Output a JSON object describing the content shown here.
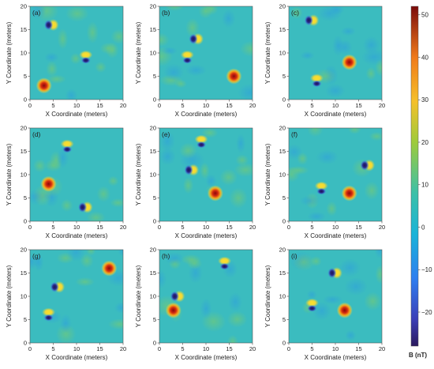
{
  "chart_data": {
    "type": "heatmap",
    "panels": [
      {
        "label": "(a)",
        "xlabel": "X Coordinate (meters)",
        "ylabel": "Y Coordinate (meters)",
        "xlim": [
          0,
          20
        ],
        "ylim": [
          0,
          20
        ],
        "xticks": [
          "0",
          "5",
          "10",
          "15",
          "20"
        ],
        "yticks": [
          "0",
          "5",
          "10",
          "15",
          "20"
        ],
        "anomalies": [
          {
            "x": 4.5,
            "y": 16.0,
            "type": "dipole",
            "strength": 28
          },
          {
            "x": 12.0,
            "y": 9.0,
            "type": "dipole",
            "strength": 26
          },
          {
            "x": 3.0,
            "y": 3.0,
            "type": "monopole",
            "strength": 50
          }
        ]
      },
      {
        "label": "(b)",
        "xlabel": "X Coordinate (meters)",
        "ylabel": "Y Coordinate (meters)",
        "xlim": [
          0,
          20
        ],
        "ylim": [
          0,
          20
        ],
        "xticks": [
          "0",
          "5",
          "10",
          "15",
          "20"
        ],
        "yticks": [
          "0",
          "5",
          "10",
          "15",
          "20"
        ],
        "anomalies": [
          {
            "x": 7.8,
            "y": 13.0,
            "type": "dipole",
            "strength": 28
          },
          {
            "x": 6.0,
            "y": 9.0,
            "type": "dipole",
            "strength": 26
          },
          {
            "x": 16.0,
            "y": 5.0,
            "type": "monopole",
            "strength": 50
          }
        ]
      },
      {
        "label": "(c)",
        "xlabel": "X Coordinate (meters)",
        "ylabel": "Y Coordinate (meters)",
        "xlim": [
          0,
          20
        ],
        "ylim": [
          0,
          20
        ],
        "xticks": [
          "0",
          "5",
          "10",
          "15",
          "20"
        ],
        "yticks": [
          "0",
          "5",
          "10",
          "15",
          "20"
        ],
        "anomalies": [
          {
            "x": 4.8,
            "y": 17.0,
            "type": "dipole",
            "strength": 28
          },
          {
            "x": 6.0,
            "y": 4.0,
            "type": "dipole",
            "strength": 26
          },
          {
            "x": 13.0,
            "y": 8.0,
            "type": "monopole",
            "strength": 48
          }
        ]
      },
      {
        "label": "(d)",
        "xlabel": "X Coordinate (meters)",
        "ylabel": "Y Coordinate (meters)",
        "xlim": [
          0,
          20
        ],
        "ylim": [
          0,
          20
        ],
        "xticks": [
          "0",
          "5",
          "10",
          "15",
          "20"
        ],
        "yticks": [
          "0",
          "5",
          "10",
          "15",
          "20"
        ],
        "anomalies": [
          {
            "x": 8.0,
            "y": 16.0,
            "type": "dipole",
            "strength": 26
          },
          {
            "x": 11.8,
            "y": 3.0,
            "type": "dipole",
            "strength": 26
          },
          {
            "x": 4.0,
            "y": 8.0,
            "type": "monopole",
            "strength": 46
          }
        ]
      },
      {
        "label": "(e)",
        "xlabel": "X Coordinate (meters)",
        "ylabel": "Y Coordinate (meters)",
        "xlim": [
          0,
          20
        ],
        "ylim": [
          0,
          20
        ],
        "xticks": [
          "0",
          "5",
          "10",
          "15",
          "20"
        ],
        "yticks": [
          "0",
          "5",
          "10",
          "15",
          "20"
        ],
        "anomalies": [
          {
            "x": 9.0,
            "y": 17.0,
            "type": "dipole",
            "strength": 26
          },
          {
            "x": 6.8,
            "y": 11.0,
            "type": "dipole",
            "strength": 28
          },
          {
            "x": 12.0,
            "y": 6.0,
            "type": "monopole",
            "strength": 50
          }
        ]
      },
      {
        "label": "(f)",
        "xlabel": "X Coordinate (meters)",
        "ylabel": "Y Coordinate (meters)",
        "xlim": [
          0,
          20
        ],
        "ylim": [
          0,
          20
        ],
        "xticks": [
          "0",
          "5",
          "10",
          "15",
          "20"
        ],
        "yticks": [
          "0",
          "5",
          "10",
          "15",
          "20"
        ],
        "anomalies": [
          {
            "x": 16.8,
            "y": 12.0,
            "type": "dipole",
            "strength": 28
          },
          {
            "x": 7.0,
            "y": 7.0,
            "type": "dipole",
            "strength": 26
          },
          {
            "x": 13.0,
            "y": 6.0,
            "type": "monopole",
            "strength": 48
          }
        ]
      },
      {
        "label": "(g)",
        "xlabel": "X Coordinate (meters)",
        "ylabel": "Y Coordinate (meters)",
        "xlim": [
          0,
          20
        ],
        "ylim": [
          0,
          20
        ],
        "xticks": [
          "0",
          "5",
          "10",
          "15",
          "20"
        ],
        "yticks": [
          "0",
          "5",
          "10",
          "15",
          "20"
        ],
        "anomalies": [
          {
            "x": 5.8,
            "y": 12.0,
            "type": "dipole",
            "strength": 28
          },
          {
            "x": 4.0,
            "y": 6.0,
            "type": "dipole",
            "strength": 26
          },
          {
            "x": 17.0,
            "y": 16.0,
            "type": "monopole",
            "strength": 50
          }
        ]
      },
      {
        "label": "(h)",
        "xlabel": "X Coordinate (meters)",
        "ylabel": "Y Coordinate (meters)",
        "xlim": [
          0,
          20
        ],
        "ylim": [
          0,
          20
        ],
        "xticks": [
          "0",
          "5",
          "10",
          "15",
          "20"
        ],
        "yticks": [
          "0",
          "5",
          "10",
          "15",
          "20"
        ],
        "anomalies": [
          {
            "x": 14.0,
            "y": 17.0,
            "type": "dipole",
            "strength": 26
          },
          {
            "x": 3.8,
            "y": 10.0,
            "type": "dipole",
            "strength": 28
          },
          {
            "x": 3.0,
            "y": 7.0,
            "type": "monopole",
            "strength": 50
          }
        ]
      },
      {
        "label": "(i)",
        "xlabel": "X Coordinate (meters)",
        "ylabel": "Y Coordinate (meters)",
        "xlim": [
          0,
          20
        ],
        "ylim": [
          0,
          20
        ],
        "xticks": [
          "0",
          "5",
          "10",
          "15",
          "20"
        ],
        "yticks": [
          "0",
          "5",
          "10",
          "15",
          "20"
        ],
        "anomalies": [
          {
            "x": 9.8,
            "y": 15.0,
            "type": "dipole",
            "strength": 28
          },
          {
            "x": 5.0,
            "y": 8.0,
            "type": "dipole",
            "strength": 26
          },
          {
            "x": 12.0,
            "y": 7.0,
            "type": "monopole",
            "strength": 50
          }
        ]
      }
    ],
    "colorbar": {
      "label": "B (nT)",
      "range": [
        -28,
        52
      ],
      "ticks": [
        "50",
        "40",
        "30",
        "20",
        "10",
        "0",
        "−10",
        "−20"
      ],
      "tick_values": [
        50,
        40,
        30,
        20,
        10,
        0,
        -10,
        -20
      ],
      "colormap": "jet"
    },
    "grid": false
  }
}
